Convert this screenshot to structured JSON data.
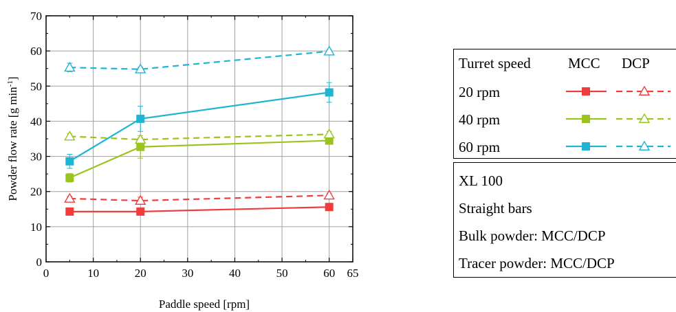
{
  "chart_data": {
    "type": "line",
    "xlabel": "Paddle speed [rpm]",
    "ylabel_main": "Powder flow rate [g min",
    "ylabel_sup": "-1",
    "ylabel_end": "]",
    "xlim": [
      0,
      65
    ],
    "ylim": [
      0,
      70
    ],
    "x_ticks": [
      "0",
      "10",
      "20",
      "30",
      "40",
      "50",
      "60",
      "65"
    ],
    "x_tick_values": [
      0,
      10,
      20,
      30,
      40,
      50,
      60,
      65
    ],
    "y_ticks": [
      "0",
      "10",
      "20",
      "30",
      "40",
      "50",
      "60",
      "70"
    ],
    "y_tick_values": [
      0,
      10,
      20,
      30,
      40,
      50,
      60,
      70
    ],
    "grid": true,
    "x": [
      5,
      20,
      60
    ],
    "series": [
      {
        "key": "mcc20",
        "material": "MCC",
        "turret": "20 rpm",
        "color": "#f03c3c",
        "marker": "square",
        "dash": false,
        "values": [
          14.3,
          14.3,
          15.6
        ],
        "errors": [
          0.5,
          0.5,
          0.5
        ]
      },
      {
        "key": "dcp20",
        "material": "DCP",
        "turret": "20 rpm",
        "color": "#f03c3c",
        "marker": "triangle",
        "dash": true,
        "values": [
          18.0,
          17.4,
          18.9
        ],
        "errors": [
          0.6,
          1.0,
          0.6
        ]
      },
      {
        "key": "mcc40",
        "material": "MCC",
        "turret": "40 rpm",
        "color": "#9bc31e",
        "marker": "square",
        "dash": false,
        "values": [
          23.9,
          32.7,
          34.5
        ],
        "errors": [
          1.2,
          3.2,
          1.0
        ]
      },
      {
        "key": "dcp40",
        "material": "DCP",
        "turret": "40 rpm",
        "color": "#9bc31e",
        "marker": "triangle",
        "dash": true,
        "values": [
          35.7,
          34.8,
          36.3
        ],
        "errors": [
          0.8,
          0.5,
          0.8
        ]
      },
      {
        "key": "mcc60",
        "material": "MCC",
        "turret": "60 rpm",
        "color": "#1eb4d2",
        "marker": "square",
        "dash": false,
        "values": [
          28.6,
          40.7,
          48.2
        ],
        "errors": [
          2.0,
          3.6,
          2.8
        ]
      },
      {
        "key": "dcp60",
        "material": "DCP",
        "turret": "60 rpm",
        "color": "#1eb4d2",
        "marker": "triangle",
        "dash": true,
        "values": [
          55.3,
          54.8,
          59.9
        ],
        "errors": [
          1.2,
          0.6,
          0.5
        ]
      }
    ],
    "legend": {
      "header_label": "Turret speed",
      "col_mcc": "MCC",
      "col_dcp": "DCP",
      "rows": [
        "20 rpm",
        "40 rpm",
        "60 rpm"
      ],
      "placement": "right"
    },
    "notes": [
      "XL 100",
      "Straight bars",
      "Bulk powder: MCC/DCP",
      "Tracer powder: MCC/DCP"
    ]
  }
}
